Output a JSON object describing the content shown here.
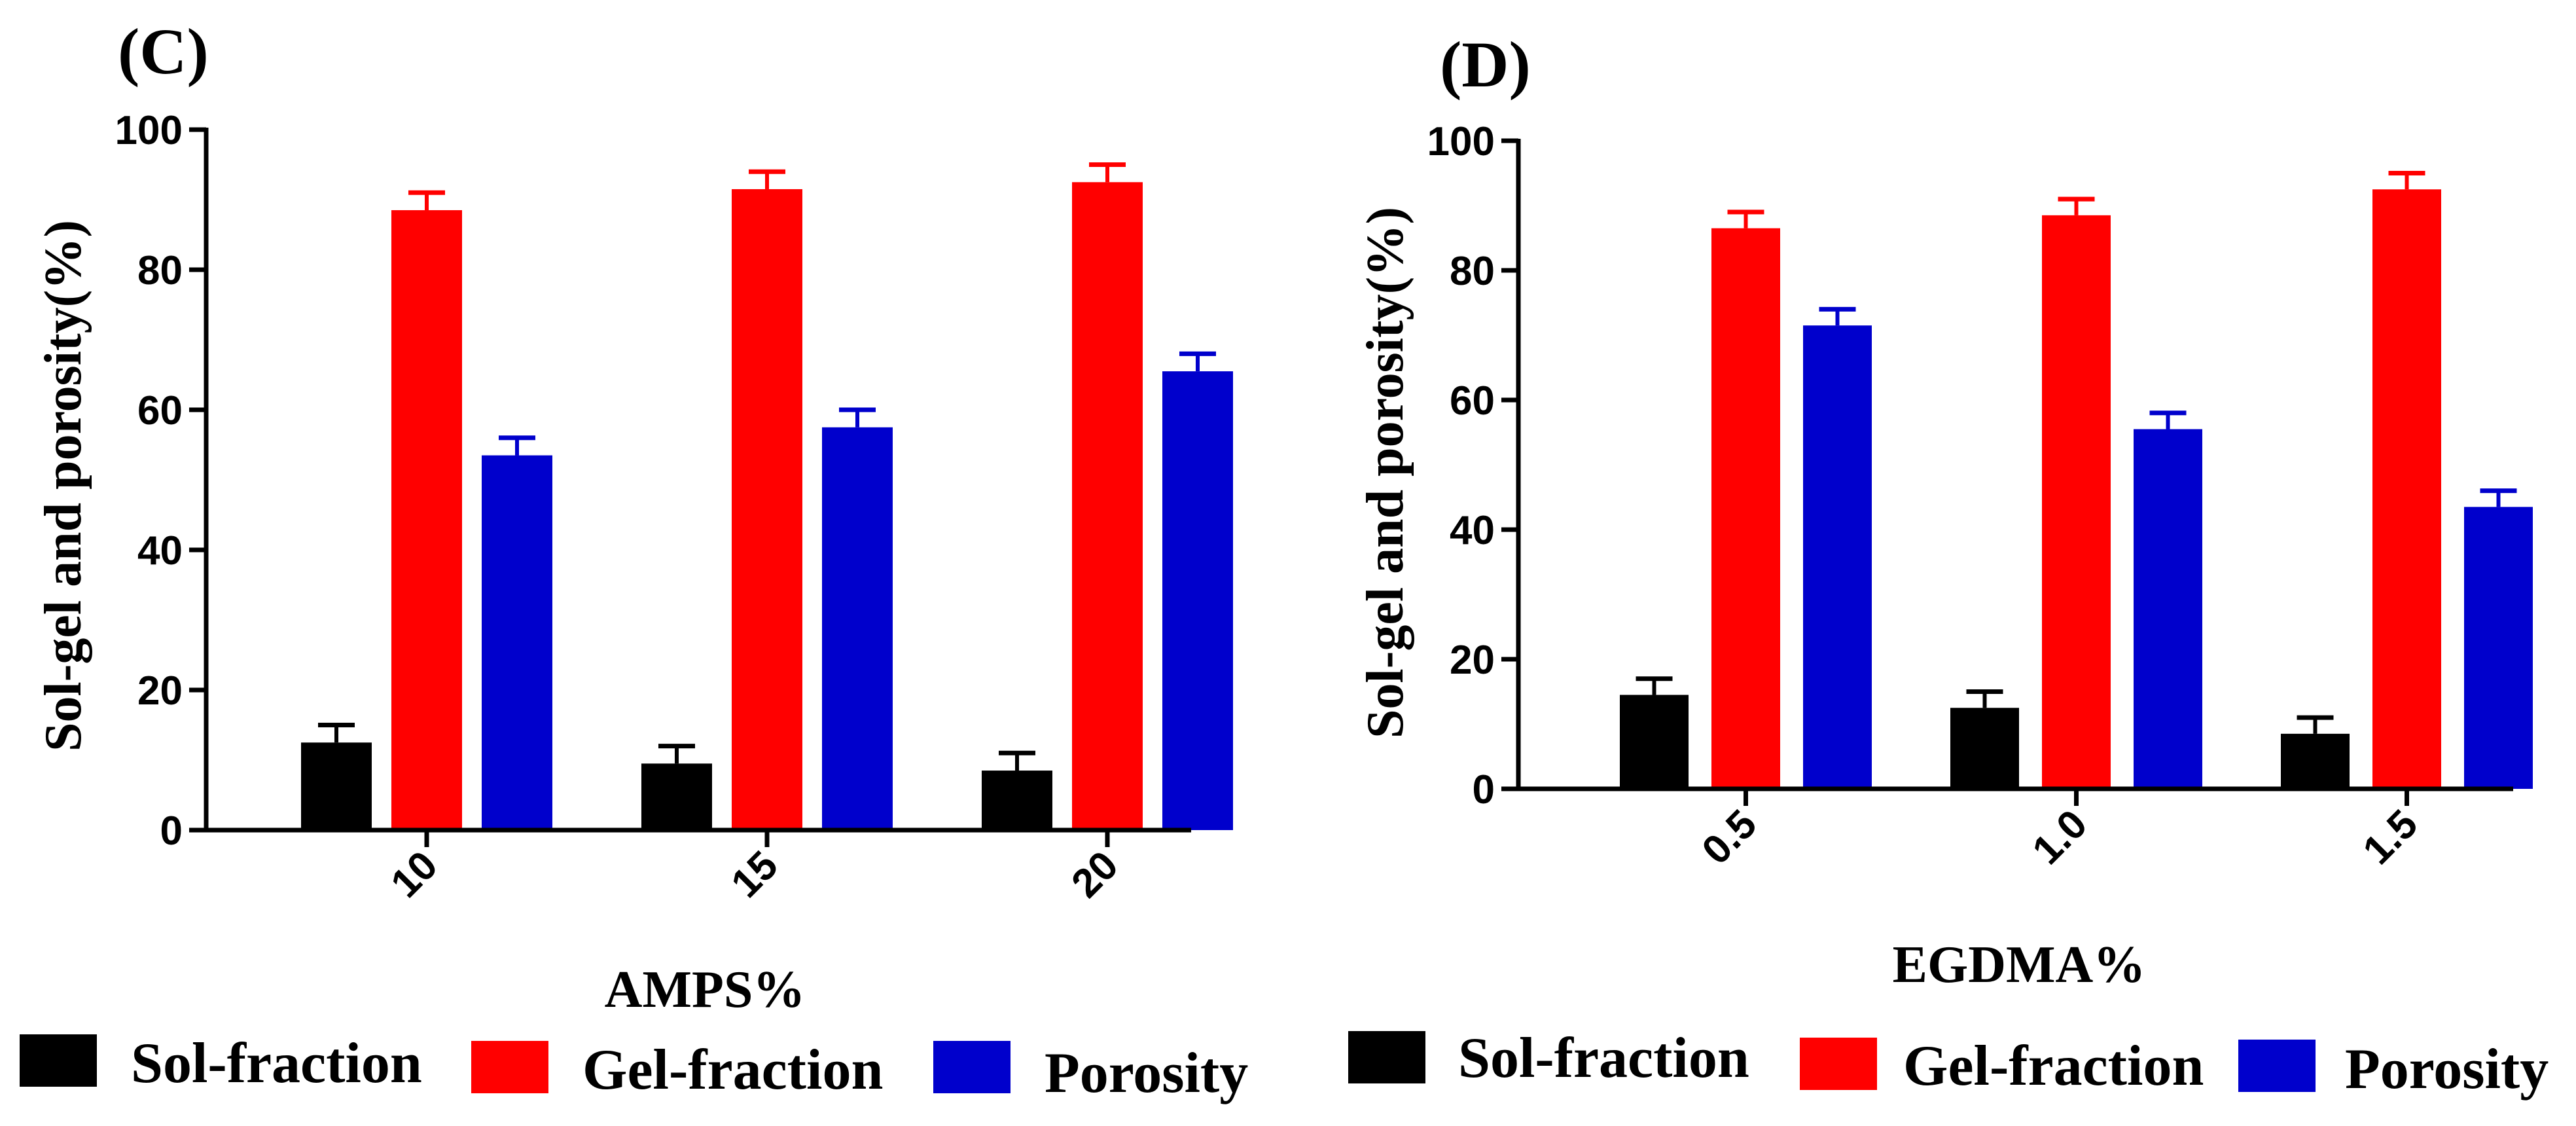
{
  "chart_data": [
    {
      "type": "bar",
      "title": "(C)",
      "xlabel": "AMPS%",
      "ylabel": "Sol-gel and porosity(%)",
      "categories": [
        "10",
        "15",
        "20"
      ],
      "yticks": [
        "0",
        "20",
        "40",
        "60",
        "80",
        "100"
      ],
      "ylim": [
        0,
        100
      ],
      "series": [
        {
          "name": "Sol-fraction",
          "color": "#000000",
          "values": [
            12.5,
            9.5,
            8.5
          ],
          "errors": [
            2.5,
            2.5,
            2.5
          ]
        },
        {
          "name": "Gel-fraction",
          "color": "#ff0000",
          "values": [
            88.5,
            91.5,
            92.5
          ],
          "errors": [
            2.5,
            2.5,
            2.5
          ]
        },
        {
          "name": "Porosity",
          "color": "#0000cc",
          "values": [
            53.5,
            57.5,
            65.5
          ],
          "errors": [
            2.5,
            2.5,
            2.5
          ]
        }
      ]
    },
    {
      "type": "bar",
      "title": "(D)",
      "xlabel": "EGDMA%",
      "ylabel": "Sol-gel and porosity(%)",
      "categories": [
        "0.5",
        "1.0",
        "1.5"
      ],
      "yticks": [
        "0",
        "20",
        "40",
        "60",
        "80",
        "100"
      ],
      "ylim": [
        0,
        100
      ],
      "series": [
        {
          "name": "Sol-fraction",
          "color": "#000000",
          "values": [
            14.5,
            12.5,
            8.5
          ],
          "errors": [
            2.5,
            2.5,
            2.5
          ]
        },
        {
          "name": "Gel-fraction",
          "color": "#ff0000",
          "values": [
            86.5,
            88.5,
            92.5
          ],
          "errors": [
            2.5,
            2.5,
            2.5
          ]
        },
        {
          "name": "Porosity",
          "color": "#0000cc",
          "values": [
            71.5,
            55.5,
            43.5
          ],
          "errors": [
            2.5,
            2.5,
            2.5
          ]
        }
      ]
    }
  ]
}
